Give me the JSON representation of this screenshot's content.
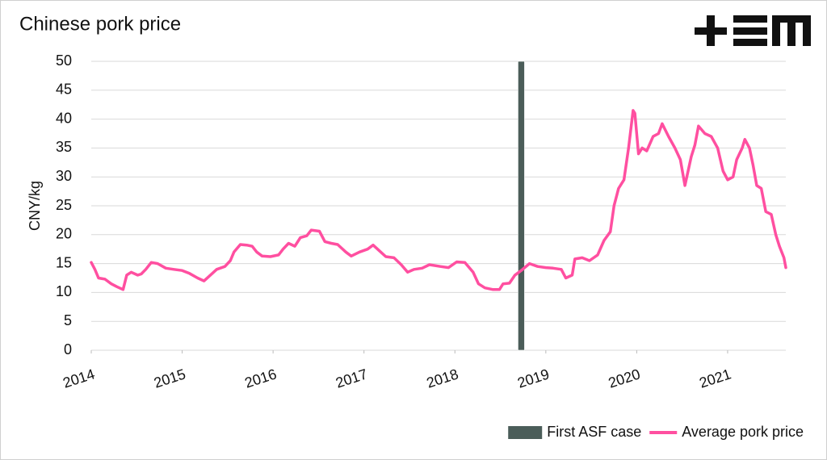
{
  "chart_data": {
    "type": "line",
    "title": "Chinese pork price",
    "y_label": "CNY/kg",
    "xlim": [
      2014,
      2021.64
    ],
    "xticks": [
      2014,
      2015,
      2016,
      2017,
      2018,
      2019,
      2020,
      2021
    ],
    "ylim": [
      0,
      50
    ],
    "yticks": [
      0,
      5,
      10,
      15,
      20,
      25,
      30,
      35,
      40,
      45,
      50
    ],
    "grid": true,
    "legend": "bottom-right",
    "annotation": {
      "name": "First ASF case",
      "x": 2018.73,
      "color": "#4b5d59"
    },
    "series": [
      {
        "name": "Average pork price",
        "color": "#ff4fa0",
        "x": [
          2014.0,
          2014.04,
          2014.08,
          2014.15,
          2014.22,
          2014.28,
          2014.35,
          2014.39,
          2014.44,
          2014.51,
          2014.55,
          2014.6,
          2014.66,
          2014.73,
          2014.82,
          2014.91,
          2015.0,
          2015.08,
          2015.17,
          2015.24,
          2015.31,
          2015.38,
          2015.47,
          2015.53,
          2015.57,
          2015.64,
          2015.71,
          2015.77,
          2015.82,
          2015.88,
          2015.97,
          2016.06,
          2016.11,
          2016.17,
          2016.24,
          2016.3,
          2016.37,
          2016.42,
          2016.51,
          2016.57,
          2016.64,
          2016.71,
          2016.8,
          2016.86,
          2016.95,
          2017.04,
          2017.1,
          2017.17,
          2017.24,
          2017.33,
          2017.41,
          2017.48,
          2017.55,
          2017.64,
          2017.72,
          2017.84,
          2017.93,
          2018.02,
          2018.11,
          2018.2,
          2018.26,
          2018.33,
          2018.42,
          2018.49,
          2018.53,
          2018.6,
          2018.66,
          2018.73,
          2018.82,
          2018.91,
          2019.0,
          2019.08,
          2019.17,
          2019.22,
          2019.29,
          2019.32,
          2019.4,
          2019.48,
          2019.57,
          2019.64,
          2019.71,
          2019.75,
          2019.8,
          2019.86,
          2019.91,
          2019.96,
          2019.98,
          2020.02,
          2020.06,
          2020.11,
          2020.18,
          2020.24,
          2020.28,
          2020.35,
          2020.42,
          2020.48,
          2020.53,
          2020.6,
          2020.64,
          2020.68,
          2020.75,
          2020.82,
          2020.89,
          2020.95,
          2021.0,
          2021.06,
          2021.1,
          2021.16,
          2021.19,
          2021.24,
          2021.28,
          2021.32,
          2021.37,
          2021.42,
          2021.48,
          2021.53,
          2021.57,
          2021.62,
          2021.64
        ],
        "values": [
          15.2,
          14,
          12.5,
          12.3,
          11.5,
          11,
          10.5,
          13,
          13.5,
          13,
          13.2,
          14,
          15.2,
          15,
          14.2,
          14,
          13.8,
          13.3,
          12.5,
          12,
          13,
          14,
          14.5,
          15.5,
          17,
          18.3,
          18.2,
          18,
          17,
          16.3,
          16.2,
          16.5,
          17.5,
          18.5,
          18,
          19.5,
          19.8,
          20.8,
          20.6,
          18.8,
          18.5,
          18.3,
          17,
          16.3,
          17,
          17.5,
          18.2,
          17.2,
          16.2,
          16,
          14.8,
          13.5,
          14,
          14.2,
          14.8,
          14.5,
          14.3,
          15.3,
          15.2,
          13.5,
          11.5,
          10.8,
          10.5,
          10.5,
          11.5,
          11.6,
          13,
          13.8,
          15,
          14.5,
          14.3,
          14.2,
          14,
          12.5,
          13,
          15.8,
          16,
          15.5,
          16.5,
          19,
          20.5,
          25,
          28,
          29.5,
          35,
          41.5,
          41,
          34,
          35,
          34.5,
          37,
          37.5,
          39.2,
          37,
          35,
          33,
          28.5,
          33.5,
          35.5,
          38.8,
          37.5,
          37,
          35,
          31,
          29.5,
          30,
          33,
          35,
          36.5,
          35,
          32,
          28.5,
          28,
          24,
          23.5,
          20,
          18,
          16,
          14.3
        ]
      }
    ]
  }
}
